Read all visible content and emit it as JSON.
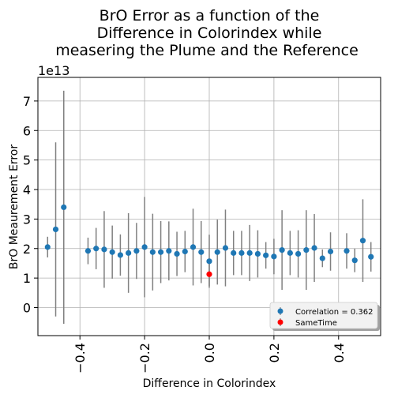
{
  "chart_data": {
    "type": "scatter",
    "title_lines": [
      "BrO Error as a function of the",
      "Difference in Colorindex while",
      "measering the Plume and the Reference"
    ],
    "xlabel": "Difference in Colorindex",
    "ylabel": "BrO Meaurement Error",
    "y_multiplier_label": "1e13",
    "xlim": [
      -0.53,
      0.53
    ],
    "ylim": [
      -0.95,
      7.8
    ],
    "x_ticks": [
      -0.4,
      -0.2,
      0.0,
      0.2,
      0.4
    ],
    "x_tick_labels": [
      "−0.4",
      "−0.2",
      "0.0",
      "0.2",
      "0.4"
    ],
    "y_ticks": [
      0,
      1,
      2,
      3,
      4,
      5,
      6,
      7
    ],
    "y_tick_labels": [
      "0",
      "1",
      "2",
      "3",
      "4",
      "5",
      "6",
      "7"
    ],
    "grid": true,
    "legend_position": "lower-right",
    "colors": {
      "series_main": "#1f77b4",
      "series_same": "#ff0000",
      "errorbar": "#808080"
    },
    "series": [
      {
        "name": "Correlation = 0.362",
        "points": [
          {
            "x": -0.5,
            "y": 2.05,
            "err": 0.35
          },
          {
            "x": -0.475,
            "y": 2.65,
            "err": 2.95
          },
          {
            "x": -0.45,
            "y": 3.4,
            "err": 3.95
          },
          {
            "x": -0.375,
            "y": 1.92,
            "err": 0.45
          },
          {
            "x": -0.35,
            "y": 2.0,
            "err": 0.7
          },
          {
            "x": -0.325,
            "y": 1.97,
            "err": 1.3
          },
          {
            "x": -0.3,
            "y": 1.88,
            "err": 0.9
          },
          {
            "x": -0.275,
            "y": 1.78,
            "err": 0.7
          },
          {
            "x": -0.25,
            "y": 1.85,
            "err": 1.35
          },
          {
            "x": -0.225,
            "y": 1.92,
            "err": 0.95
          },
          {
            "x": -0.2,
            "y": 2.05,
            "err": 1.7
          },
          {
            "x": -0.175,
            "y": 1.88,
            "err": 1.3
          },
          {
            "x": -0.15,
            "y": 1.88,
            "err": 1.05
          },
          {
            "x": -0.125,
            "y": 1.92,
            "err": 1.0
          },
          {
            "x": -0.1,
            "y": 1.82,
            "err": 0.75
          },
          {
            "x": -0.075,
            "y": 1.9,
            "err": 0.7
          },
          {
            "x": -0.05,
            "y": 2.05,
            "err": 1.3
          },
          {
            "x": -0.025,
            "y": 1.88,
            "err": 1.05
          },
          {
            "x": 0.0,
            "y": 1.57,
            "err": 0.9
          },
          {
            "x": 0.025,
            "y": 1.88,
            "err": 1.1
          },
          {
            "x": 0.05,
            "y": 2.02,
            "err": 1.3
          },
          {
            "x": 0.075,
            "y": 1.85,
            "err": 0.75
          },
          {
            "x": 0.1,
            "y": 1.85,
            "err": 0.75
          },
          {
            "x": 0.125,
            "y": 1.85,
            "err": 0.95
          },
          {
            "x": 0.15,
            "y": 1.82,
            "err": 0.8
          },
          {
            "x": 0.175,
            "y": 1.77,
            "err": 0.45
          },
          {
            "x": 0.2,
            "y": 1.73,
            "err": 0.6
          },
          {
            "x": 0.225,
            "y": 1.95,
            "err": 1.35
          },
          {
            "x": 0.25,
            "y": 1.85,
            "err": 0.75
          },
          {
            "x": 0.275,
            "y": 1.82,
            "err": 0.8
          },
          {
            "x": 0.3,
            "y": 1.95,
            "err": 1.35
          },
          {
            "x": 0.325,
            "y": 2.02,
            "err": 1.15
          },
          {
            "x": 0.35,
            "y": 1.67,
            "err": 0.3
          },
          {
            "x": 0.375,
            "y": 1.9,
            "err": 0.65
          },
          {
            "x": 0.425,
            "y": 1.92,
            "err": 0.6
          },
          {
            "x": 0.45,
            "y": 1.6,
            "err": 0.4
          },
          {
            "x": 0.475,
            "y": 2.27,
            "err": 1.4
          },
          {
            "x": 0.5,
            "y": 1.72,
            "err": 0.5
          }
        ]
      },
      {
        "name": "SameTime",
        "points": [
          {
            "x": 0.0,
            "y": 1.13,
            "err": 0.4
          }
        ]
      }
    ]
  }
}
